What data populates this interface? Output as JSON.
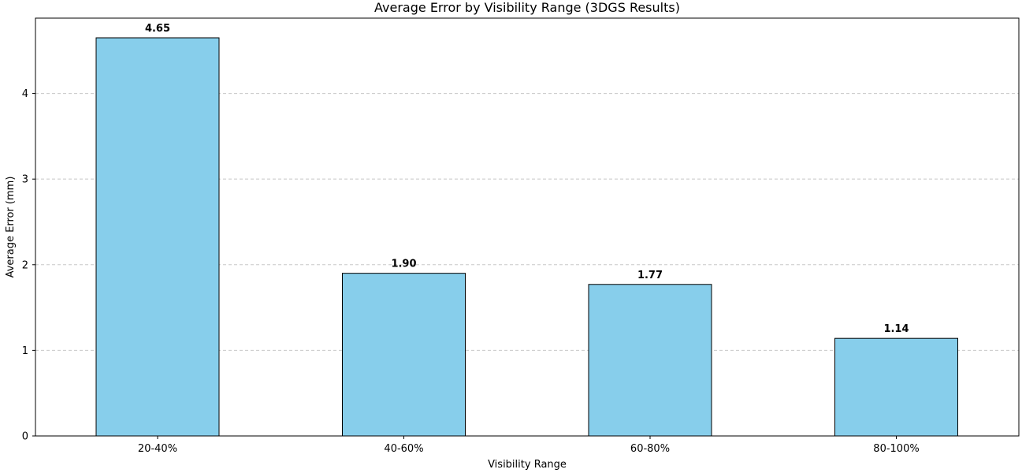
{
  "chart_data": {
    "type": "bar",
    "title": "Average Error by Visibility Range (3DGS Results)",
    "xlabel": "Visibility Range",
    "ylabel": "Average Error (mm)",
    "categories": [
      "20-40%",
      "40-60%",
      "60-80%",
      "80-100%"
    ],
    "values": [
      4.65,
      1.9,
      1.77,
      1.14
    ],
    "value_labels": [
      "4.65",
      "1.90",
      "1.77",
      "1.14"
    ],
    "ylim": [
      0,
      4.88
    ],
    "yticks": [
      0,
      1,
      2,
      3,
      4
    ],
    "grid": "y-dashed",
    "colors": {
      "bar": "#87CEEB",
      "edge": "#000000",
      "grid": "#c8c8c8"
    }
  }
}
